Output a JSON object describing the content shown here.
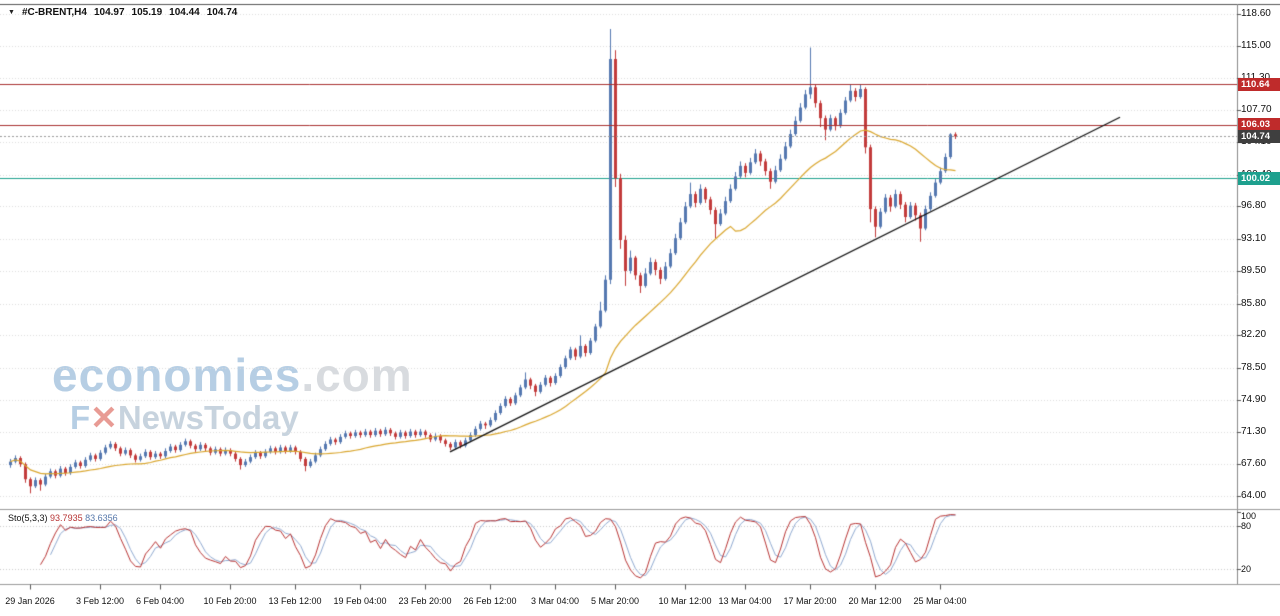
{
  "symbol_bar": {
    "symbol": "#C-BRENT,H4",
    "open": "104.97",
    "high": "105.19",
    "low": "104.44",
    "close": "104.74"
  },
  "icons": {
    "dropdown": "▼"
  },
  "watermark": {
    "line1_main": "economies",
    "line1_suffix": ".com",
    "line2_f": "F",
    "line2_x": "✕",
    "line2_rest": "NewsToday"
  },
  "hlines": [
    {
      "label": "110.64",
      "price": 110.64,
      "line_color": "#a93030",
      "tag_color": "#bf2b2b"
    },
    {
      "label": "106.03",
      "price": 106.03,
      "line_color": "#a93030",
      "tag_color": "#bf2b2b"
    },
    {
      "label": "100.02",
      "price": 100.02,
      "line_color": "#1ea08e",
      "tag_color": "#1ea08e"
    }
  ],
  "current_price": {
    "label": "104.74",
    "price": 104.74,
    "tag_color": "#3f3f3f",
    "line_color": "#999999"
  },
  "stochastic": {
    "label": "Sto(5,3,3)",
    "main_value": "93.7935",
    "signal_value": "83.6356",
    "axis_labels": [
      100,
      80,
      20
    ]
  },
  "colors": {
    "bull": "#5578b0",
    "bear": "#c23b3b",
    "ma": "#d9a62e",
    "trend": "#111111",
    "grid": "#dcdcdc",
    "sto_main": "#b73333",
    "sto_signal": "#8fa9d0",
    "axis_line": "#888888",
    "separator": "#9a9a9a"
  },
  "chart_data": {
    "type": "candlestick",
    "symbol": "#C-BRENT",
    "timeframe": "H4",
    "current_ohlc": {
      "open": 104.97,
      "high": 105.19,
      "low": 104.44,
      "close": 104.74
    },
    "y_axis": {
      "min": 64.0,
      "max": 118.6,
      "ticks": [
        118.6,
        115.0,
        111.3,
        107.7,
        104.1,
        100.4,
        96.8,
        93.1,
        89.5,
        85.8,
        82.2,
        78.5,
        74.9,
        71.3,
        67.6,
        64.0
      ]
    },
    "x_axis": {
      "labels": [
        {
          "text": "29 Jan 2026",
          "index": 4
        },
        {
          "text": "3 Feb 12:00",
          "index": 18
        },
        {
          "text": "6 Feb 04:00",
          "index": 30
        },
        {
          "text": "10 Feb 20:00",
          "index": 44
        },
        {
          "text": "13 Feb 12:00",
          "index": 57
        },
        {
          "text": "19 Feb 04:00",
          "index": 70
        },
        {
          "text": "23 Feb 20:00",
          "index": 83
        },
        {
          "text": "26 Feb 12:00",
          "index": 96
        },
        {
          "text": "3 Mar 04:00",
          "index": 109
        },
        {
          "text": "5 Mar 20:00",
          "index": 121
        },
        {
          "text": "10 Mar 12:00",
          "index": 135
        },
        {
          "text": "13 Mar 04:00",
          "index": 147
        },
        {
          "text": "17 Mar 20:00",
          "index": 160
        },
        {
          "text": "20 Mar 12:00",
          "index": 173
        },
        {
          "text": "25 Mar 04:00",
          "index": 186
        }
      ]
    },
    "horizontal_levels": [
      110.64,
      106.03,
      100.02
    ],
    "trendline": {
      "from": {
        "index": 88,
        "price": 69.0
      },
      "to": {
        "index": 222,
        "price": 106.9
      }
    },
    "moving_average": {
      "type": "SMA",
      "period": 25
    },
    "indicator": {
      "name": "Sto(5,3,3)",
      "k": 5,
      "d": 3,
      "slowing": 3,
      "levels": [
        80,
        20
      ],
      "scale": [
        0,
        100
      ],
      "main_value": 93.7935,
      "signal_value": 83.6356
    },
    "candles": [
      [
        67.5,
        68.2,
        67.2,
        67.9
      ],
      [
        67.9,
        68.6,
        67.7,
        68.3
      ],
      [
        68.3,
        68.5,
        67.3,
        67.6
      ],
      [
        67.6,
        67.8,
        65.5,
        65.9
      ],
      [
        65.9,
        66.1,
        64.3,
        65.1
      ],
      [
        65.1,
        66.1,
        64.9,
        65.8
      ],
      [
        65.8,
        66.0,
        64.6,
        65.3
      ],
      [
        65.3,
        66.5,
        65.1,
        66.2
      ],
      [
        66.2,
        67.1,
        66.0,
        66.8
      ],
      [
        66.8,
        67.0,
        66.0,
        66.3
      ],
      [
        66.3,
        67.4,
        66.1,
        67.1
      ],
      [
        67.1,
        67.3,
        66.3,
        66.6
      ],
      [
        66.6,
        67.6,
        66.4,
        67.3
      ],
      [
        67.3,
        68.1,
        67.1,
        67.8
      ],
      [
        67.8,
        68.0,
        67.1,
        67.4
      ],
      [
        67.4,
        68.4,
        67.2,
        68.1
      ],
      [
        68.1,
        68.9,
        67.9,
        68.6
      ],
      [
        68.6,
        68.8,
        67.9,
        68.2
      ],
      [
        68.2,
        69.2,
        68.0,
        68.9
      ],
      [
        68.9,
        69.8,
        68.7,
        69.5
      ],
      [
        69.5,
        70.2,
        69.3,
        69.9
      ],
      [
        69.9,
        70.1,
        69.1,
        69.4
      ],
      [
        69.4,
        69.6,
        68.5,
        68.8
      ],
      [
        68.8,
        69.5,
        68.6,
        69.2
      ],
      [
        69.2,
        69.4,
        68.3,
        68.6
      ],
      [
        68.6,
        68.8,
        67.8,
        68.1
      ],
      [
        68.1,
        68.8,
        67.9,
        68.5
      ],
      [
        68.5,
        69.3,
        68.3,
        69.0
      ],
      [
        69.0,
        69.2,
        68.1,
        68.4
      ],
      [
        68.4,
        69.1,
        68.2,
        68.8
      ],
      [
        68.8,
        69.0,
        68.2,
        68.5
      ],
      [
        68.5,
        69.4,
        68.3,
        69.1
      ],
      [
        69.1,
        69.9,
        68.9,
        69.6
      ],
      [
        69.6,
        69.8,
        68.9,
        69.2
      ],
      [
        69.2,
        70.1,
        69.0,
        69.8
      ],
      [
        69.8,
        70.5,
        69.6,
        70.2
      ],
      [
        70.2,
        70.4,
        69.4,
        69.7
      ],
      [
        69.7,
        69.9,
        69.0,
        69.3
      ],
      [
        69.3,
        70.1,
        69.1,
        69.8
      ],
      [
        69.8,
        70.0,
        69.1,
        69.4
      ],
      [
        69.4,
        69.6,
        68.6,
        68.9
      ],
      [
        68.9,
        69.6,
        68.7,
        69.3
      ],
      [
        69.3,
        69.5,
        68.5,
        68.8
      ],
      [
        68.8,
        69.5,
        68.6,
        69.2
      ],
      [
        69.2,
        69.4,
        68.5,
        68.8
      ],
      [
        68.8,
        69.0,
        67.9,
        68.2
      ],
      [
        68.2,
        68.4,
        67.0,
        67.5
      ],
      [
        67.5,
        68.2,
        67.3,
        67.9
      ],
      [
        67.9,
        68.7,
        67.7,
        68.4
      ],
      [
        68.4,
        69.2,
        68.2,
        68.9
      ],
      [
        68.9,
        69.1,
        68.2,
        68.5
      ],
      [
        68.5,
        69.3,
        68.3,
        69.0
      ],
      [
        69.0,
        69.7,
        68.8,
        69.4
      ],
      [
        69.4,
        69.6,
        68.7,
        69.0
      ],
      [
        69.0,
        69.8,
        68.8,
        69.5
      ],
      [
        69.5,
        69.7,
        68.8,
        69.1
      ],
      [
        69.1,
        69.8,
        68.9,
        69.5
      ],
      [
        69.5,
        69.7,
        68.7,
        69.0
      ],
      [
        69.0,
        69.2,
        67.9,
        68.2
      ],
      [
        68.2,
        68.4,
        66.8,
        67.4
      ],
      [
        67.4,
        68.2,
        67.2,
        67.9
      ],
      [
        67.9,
        68.9,
        67.7,
        68.6
      ],
      [
        68.6,
        69.6,
        68.4,
        69.3
      ],
      [
        69.3,
        70.2,
        69.1,
        69.9
      ],
      [
        69.9,
        70.7,
        69.7,
        70.4
      ],
      [
        70.4,
        70.6,
        69.8,
        70.1
      ],
      [
        70.1,
        71.0,
        69.9,
        70.7
      ],
      [
        70.7,
        71.4,
        70.5,
        71.1
      ],
      [
        71.1,
        71.3,
        70.5,
        70.8
      ],
      [
        70.8,
        71.5,
        70.6,
        71.2
      ],
      [
        71.2,
        71.4,
        70.6,
        70.9
      ],
      [
        70.9,
        71.6,
        70.7,
        71.3
      ],
      [
        71.3,
        71.5,
        70.6,
        70.9
      ],
      [
        70.9,
        71.7,
        70.7,
        71.4
      ],
      [
        71.4,
        71.6,
        70.7,
        71.0
      ],
      [
        71.0,
        71.8,
        70.8,
        71.5
      ],
      [
        71.5,
        71.7,
        70.8,
        71.1
      ],
      [
        71.1,
        71.3,
        70.4,
        70.7
      ],
      [
        70.7,
        71.5,
        70.5,
        71.2
      ],
      [
        71.2,
        71.4,
        70.5,
        70.8
      ],
      [
        70.8,
        71.6,
        70.6,
        71.3
      ],
      [
        71.3,
        71.5,
        70.6,
        70.9
      ],
      [
        70.9,
        71.6,
        70.7,
        71.3
      ],
      [
        71.3,
        71.5,
        70.6,
        70.9
      ],
      [
        70.9,
        71.1,
        70.1,
        70.4
      ],
      [
        70.4,
        71.1,
        70.2,
        70.8
      ],
      [
        70.8,
        71.0,
        70.0,
        70.3
      ],
      [
        70.3,
        70.5,
        69.6,
        69.9
      ],
      [
        69.9,
        70.1,
        69.2,
        69.5
      ],
      [
        69.5,
        70.4,
        69.3,
        70.1
      ],
      [
        70.1,
        70.3,
        69.4,
        69.7
      ],
      [
        69.7,
        70.6,
        69.5,
        70.3
      ],
      [
        70.3,
        71.2,
        70.1,
        70.9
      ],
      [
        70.9,
        71.9,
        70.7,
        71.6
      ],
      [
        71.6,
        72.5,
        71.4,
        72.2
      ],
      [
        72.2,
        72.4,
        71.6,
        72.0
      ],
      [
        72.0,
        72.9,
        71.8,
        72.6
      ],
      [
        72.6,
        73.7,
        72.4,
        73.4
      ],
      [
        73.4,
        74.5,
        73.2,
        74.2
      ],
      [
        74.2,
        75.3,
        74.0,
        75.0
      ],
      [
        75.0,
        75.2,
        74.2,
        74.5
      ],
      [
        74.5,
        75.7,
        74.3,
        75.4
      ],
      [
        75.4,
        76.6,
        75.2,
        76.3
      ],
      [
        76.3,
        78.0,
        76.1,
        77.2
      ],
      [
        77.2,
        77.4,
        76.1,
        76.5
      ],
      [
        76.5,
        76.7,
        75.3,
        75.8
      ],
      [
        75.8,
        76.9,
        75.6,
        76.6
      ],
      [
        76.6,
        77.7,
        76.4,
        77.4
      ],
      [
        77.4,
        77.6,
        76.4,
        76.8
      ],
      [
        76.8,
        77.9,
        76.6,
        77.6
      ],
      [
        77.6,
        78.9,
        77.4,
        78.6
      ],
      [
        78.6,
        79.9,
        78.4,
        79.6
      ],
      [
        79.6,
        80.9,
        79.4,
        80.6
      ],
      [
        80.6,
        80.8,
        79.4,
        79.8
      ],
      [
        79.8,
        82.2,
        79.6,
        81.0
      ],
      [
        81.0,
        81.2,
        79.8,
        80.2
      ],
      [
        80.2,
        81.9,
        80.0,
        81.6
      ],
      [
        81.6,
        83.5,
        81.4,
        83.2
      ],
      [
        83.2,
        86.0,
        83.0,
        85.0
      ],
      [
        85.0,
        89.0,
        84.8,
        88.5
      ],
      [
        88.5,
        116.9,
        88.0,
        113.5
      ],
      [
        113.5,
        114.5,
        99.0,
        100.0
      ],
      [
        100.0,
        100.5,
        92.0,
        93.0
      ],
      [
        93.0,
        93.5,
        87.8,
        89.5
      ],
      [
        89.5,
        91.8,
        89.2,
        91.0
      ],
      [
        91.0,
        91.2,
        88.5,
        89.0
      ],
      [
        89.0,
        89.3,
        87.0,
        87.8
      ],
      [
        87.8,
        89.8,
        87.6,
        89.2
      ],
      [
        89.2,
        91.0,
        89.0,
        90.5
      ],
      [
        90.5,
        90.8,
        89.0,
        89.6
      ],
      [
        89.6,
        89.9,
        88.0,
        88.6
      ],
      [
        88.6,
        90.5,
        88.4,
        90.0
      ],
      [
        90.0,
        92.0,
        89.8,
        91.5
      ],
      [
        91.5,
        93.7,
        91.3,
        93.2
      ],
      [
        93.2,
        95.5,
        93.0,
        95.0
      ],
      [
        95.0,
        97.3,
        94.8,
        96.8
      ],
      [
        96.8,
        99.5,
        96.6,
        98.2
      ],
      [
        98.2,
        98.5,
        96.7,
        97.2
      ],
      [
        97.2,
        99.3,
        97.0,
        98.8
      ],
      [
        98.8,
        99.0,
        97.2,
        97.6
      ],
      [
        97.6,
        97.9,
        95.9,
        96.4
      ],
      [
        96.4,
        96.7,
        93.2,
        94.8
      ],
      [
        94.8,
        96.5,
        94.6,
        96.0
      ],
      [
        96.0,
        97.9,
        95.8,
        97.4
      ],
      [
        97.4,
        99.3,
        97.2,
        98.8
      ],
      [
        98.8,
        100.7,
        98.6,
        100.2
      ],
      [
        100.2,
        101.9,
        100.0,
        101.4
      ],
      [
        101.4,
        101.7,
        100.1,
        100.6
      ],
      [
        100.6,
        102.3,
        100.4,
        101.8
      ],
      [
        101.8,
        103.3,
        101.6,
        102.8
      ],
      [
        102.8,
        103.1,
        101.4,
        101.9
      ],
      [
        101.9,
        102.2,
        100.3,
        100.8
      ],
      [
        100.8,
        101.1,
        98.8,
        99.6
      ],
      [
        99.6,
        101.4,
        99.4,
        100.9
      ],
      [
        100.9,
        102.7,
        100.7,
        102.2
      ],
      [
        102.2,
        104.1,
        102.0,
        103.6
      ],
      [
        103.6,
        105.5,
        103.4,
        105.0
      ],
      [
        105.0,
        107.0,
        104.8,
        106.5
      ],
      [
        106.5,
        108.5,
        106.3,
        108.0
      ],
      [
        108.0,
        110.0,
        107.8,
        109.5
      ],
      [
        109.5,
        114.8,
        109.0,
        110.3
      ],
      [
        110.3,
        110.6,
        108.0,
        108.5
      ],
      [
        108.5,
        108.8,
        105.8,
        106.8
      ],
      [
        106.8,
        107.1,
        104.3,
        105.5
      ],
      [
        105.5,
        107.2,
        105.3,
        106.8
      ],
      [
        106.8,
        107.0,
        105.4,
        105.9
      ],
      [
        105.9,
        107.8,
        105.7,
        107.4
      ],
      [
        107.4,
        109.2,
        107.2,
        108.8
      ],
      [
        108.8,
        110.6,
        108.6,
        109.9
      ],
      [
        109.9,
        110.2,
        108.7,
        109.2
      ],
      [
        109.2,
        110.6,
        109.0,
        110.1
      ],
      [
        110.1,
        110.3,
        102.8,
        103.5
      ],
      [
        103.5,
        103.8,
        95.0,
        96.5
      ],
      [
        96.5,
        96.8,
        93.3,
        94.5
      ],
      [
        94.5,
        96.6,
        94.3,
        96.2
      ],
      [
        96.2,
        98.2,
        96.0,
        97.8
      ],
      [
        97.8,
        98.1,
        96.2,
        96.8
      ],
      [
        96.8,
        98.7,
        96.6,
        98.2
      ],
      [
        98.2,
        98.5,
        96.5,
        97.0
      ],
      [
        97.0,
        97.3,
        95.0,
        95.6
      ],
      [
        95.6,
        97.3,
        95.4,
        96.9
      ],
      [
        96.9,
        97.2,
        95.2,
        95.8
      ],
      [
        95.8,
        96.1,
        92.8,
        94.3
      ],
      [
        94.3,
        96.9,
        94.1,
        96.5
      ],
      [
        96.5,
        98.4,
        96.3,
        98.0
      ],
      [
        98.0,
        99.9,
        97.8,
        99.5
      ],
      [
        99.5,
        101.2,
        99.3,
        100.8
      ],
      [
        100.8,
        102.8,
        100.6,
        102.4
      ],
      [
        102.4,
        105.1,
        102.2,
        104.97
      ],
      [
        104.97,
        105.19,
        104.44,
        104.74
      ]
    ]
  }
}
